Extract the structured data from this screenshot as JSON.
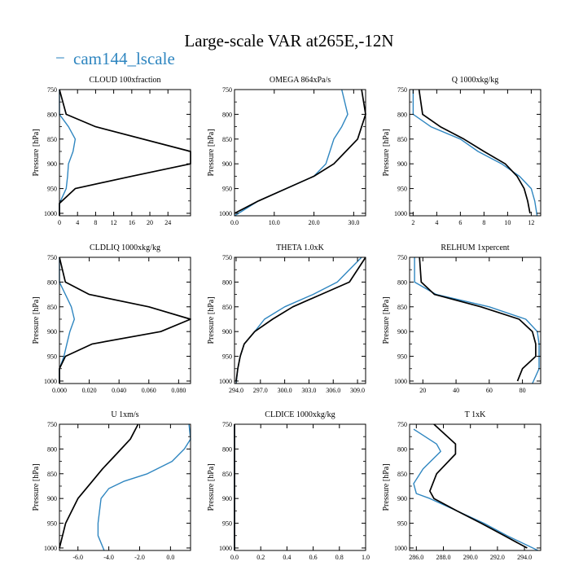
{
  "figure": {
    "title": "Large-scale VAR at265E,-12N",
    "legend": {
      "marker": "−",
      "label": "cam144_lscale",
      "placement": "top-left"
    },
    "colors": {
      "cam": "#2f86c0",
      "obs": "#000000"
    }
  },
  "chart_data": [
    {
      "type": "line",
      "title": "CLOUD  100xfraction",
      "ylabel": "Pressure [hPa]",
      "xlim": [
        0,
        29
      ],
      "ylim": [
        1005,
        750
      ],
      "xticks": [
        "0",
        "4",
        "8",
        "12",
        "16",
        "20",
        "24"
      ],
      "xtick_values": [
        0,
        4,
        8,
        12,
        16,
        20,
        24
      ],
      "yticks": [
        750,
        800,
        850,
        900,
        950,
        1000
      ],
      "series": [
        {
          "color": "#2f86c0",
          "points": [
            [
              0,
              750
            ],
            [
              0,
              800
            ],
            [
              2,
              825
            ],
            [
              3.5,
              850
            ],
            [
              3,
              875
            ],
            [
              2,
              900
            ],
            [
              1.8,
              925
            ],
            [
              1.5,
              950
            ],
            [
              0,
              980
            ],
            [
              0,
              1005
            ]
          ]
        },
        {
          "color": "#000000",
          "points": [
            [
              0,
              750
            ],
            [
              1.5,
              800
            ],
            [
              8,
              825
            ],
            [
              29,
              875
            ],
            [
              29,
              900
            ],
            [
              16,
              925
            ],
            [
              3.5,
              950
            ],
            [
              0,
              980
            ],
            [
              0,
              1005
            ]
          ]
        }
      ]
    },
    {
      "type": "line",
      "title": "OMEGA  864xPa/s",
      "ylabel": "Pressure [hPa]",
      "xlim": [
        0,
        33
      ],
      "ylim": [
        1005,
        750
      ],
      "xticks": [
        "0.0",
        "10.0",
        "20.0",
        "30.0"
      ],
      "xtick_values": [
        0,
        10,
        20,
        30
      ],
      "yticks": [
        750,
        800,
        850,
        900,
        950,
        1000
      ],
      "series": [
        {
          "color": "#2f86c0",
          "points": [
            [
              27,
              750
            ],
            [
              28.5,
              800
            ],
            [
              27,
              825
            ],
            [
              25,
              850
            ],
            [
              24,
              875
            ],
            [
              23,
              900
            ],
            [
              20,
              925
            ],
            [
              13,
              950
            ],
            [
              6,
              975
            ],
            [
              0,
              1005
            ]
          ]
        },
        {
          "color": "#000000",
          "points": [
            [
              32,
              750
            ],
            [
              33,
              800
            ],
            [
              31,
              850
            ],
            [
              28,
              875
            ],
            [
              25,
              900
            ],
            [
              20,
              925
            ],
            [
              13,
              950
            ],
            [
              6,
              975
            ],
            [
              0,
              1000
            ]
          ]
        }
      ]
    },
    {
      "type": "line",
      "title": "Q  1000xkg/kg",
      "ylabel": "Pressure [hPa]",
      "xlim": [
        1.7,
        12.8
      ],
      "ylim": [
        1005,
        750
      ],
      "xticks": [
        "2",
        "4",
        "6",
        "8",
        "10",
        "12"
      ],
      "xtick_values": [
        2,
        4,
        6,
        8,
        10,
        12
      ],
      "yticks": [
        750,
        800,
        850,
        900,
        950,
        1000
      ],
      "series": [
        {
          "color": "#2f86c0",
          "points": [
            [
              2,
              750
            ],
            [
              2,
              800
            ],
            [
              3.5,
              825
            ],
            [
              6,
              850
            ],
            [
              7.5,
              875
            ],
            [
              9.5,
              900
            ],
            [
              11,
              925
            ],
            [
              12,
              950
            ],
            [
              12.3,
              975
            ],
            [
              12.5,
              1005
            ]
          ]
        },
        {
          "color": "#000000",
          "points": [
            [
              2.5,
              750
            ],
            [
              2.8,
              800
            ],
            [
              4.3,
              825
            ],
            [
              6.3,
              850
            ],
            [
              8,
              875
            ],
            [
              9.8,
              900
            ],
            [
              10.8,
              925
            ],
            [
              11.4,
              950
            ],
            [
              11.7,
              975
            ],
            [
              11.9,
              1000
            ]
          ]
        }
      ]
    },
    {
      "type": "line",
      "title": "CLDLIQ  1000xkg/kg",
      "ylabel": "Pressure [hPa]",
      "xlim": [
        0,
        0.088
      ],
      "ylim": [
        1005,
        750
      ],
      "xticks": [
        "0.000",
        "0.020",
        "0.040",
        "0.060",
        "0.080"
      ],
      "xtick_values": [
        0,
        0.02,
        0.04,
        0.06,
        0.08
      ],
      "yticks": [
        750,
        800,
        850,
        900,
        950,
        1000
      ],
      "series": [
        {
          "color": "#2f86c0",
          "points": [
            [
              0,
              750
            ],
            [
              0,
              800
            ],
            [
              0.004,
              825
            ],
            [
              0.008,
              850
            ],
            [
              0.01,
              875
            ],
            [
              0.007,
              900
            ],
            [
              0.005,
              925
            ],
            [
              0.003,
              950
            ],
            [
              0,
              975
            ],
            [
              0,
              1005
            ]
          ]
        },
        {
          "color": "#000000",
          "points": [
            [
              0,
              750
            ],
            [
              0.004,
              800
            ],
            [
              0.02,
              825
            ],
            [
              0.06,
              850
            ],
            [
              0.088,
              875
            ],
            [
              0.068,
              900
            ],
            [
              0.022,
              925
            ],
            [
              0.004,
              950
            ],
            [
              0,
              975
            ],
            [
              0,
              1005
            ]
          ]
        }
      ]
    },
    {
      "type": "line",
      "title": "THETA  1.0xK",
      "ylabel": "Pressure [hPa]",
      "xlim": [
        293.8,
        310
      ],
      "ylim": [
        1005,
        750
      ],
      "xticks": [
        "294.0",
        "297.0",
        "300.0",
        "303.0",
        "306.0",
        "309.0"
      ],
      "xtick_values": [
        294,
        297,
        300,
        303,
        306,
        309
      ],
      "yticks": [
        750,
        800,
        850,
        900,
        950,
        1000
      ],
      "series": [
        {
          "color": "#2f86c0",
          "points": [
            [
              309.5,
              750
            ],
            [
              306.5,
              800
            ],
            [
              303.5,
              825
            ],
            [
              300,
              850
            ],
            [
              297.5,
              875
            ],
            [
              296.3,
              900
            ],
            [
              295,
              925
            ],
            [
              294.5,
              950
            ],
            [
              294.2,
              975
            ],
            [
              294,
              1005
            ]
          ]
        },
        {
          "color": "#000000",
          "points": [
            [
              310,
              750
            ],
            [
              308,
              800
            ],
            [
              304.5,
              825
            ],
            [
              301,
              850
            ],
            [
              298.5,
              875
            ],
            [
              296.3,
              900
            ],
            [
              295,
              925
            ],
            [
              294.5,
              950
            ],
            [
              294.2,
              975
            ],
            [
              294,
              1000
            ]
          ]
        }
      ]
    },
    {
      "type": "line",
      "title": "RELHUM  1xpercent",
      "ylabel": "Pressure [hPa]",
      "xlim": [
        12,
        91
      ],
      "ylim": [
        1005,
        750
      ],
      "xticks": [
        "20",
        "40",
        "60",
        "80"
      ],
      "xtick_values": [
        20,
        40,
        60,
        80
      ],
      "yticks": [
        750,
        800,
        850,
        900,
        950,
        1000
      ],
      "series": [
        {
          "color": "#2f86c0",
          "points": [
            [
              15,
              750
            ],
            [
              15,
              800
            ],
            [
              28,
              825
            ],
            [
              60,
              850
            ],
            [
              82,
              875
            ],
            [
              89,
              900
            ],
            [
              90,
              925
            ],
            [
              90,
              950
            ],
            [
              90,
              975
            ],
            [
              86,
              1005
            ]
          ]
        },
        {
          "color": "#000000",
          "points": [
            [
              18,
              750
            ],
            [
              19,
              800
            ],
            [
              27,
              825
            ],
            [
              55,
              850
            ],
            [
              78,
              875
            ],
            [
              86,
              900
            ],
            [
              88,
              925
            ],
            [
              88,
              950
            ],
            [
              80,
              975
            ],
            [
              77,
              1000
            ]
          ]
        }
      ]
    },
    {
      "type": "line",
      "title": "U  1xm/s",
      "ylabel": "Pressure [hPa]",
      "xlim": [
        -7.2,
        1.3
      ],
      "ylim": [
        1005,
        750
      ],
      "xticks": [
        "-6.0",
        "-4.0",
        "-2.0",
        "0.0"
      ],
      "xtick_values": [
        -6,
        -4,
        -2,
        0
      ],
      "yticks": [
        750,
        800,
        850,
        900,
        950,
        1000
      ],
      "series": [
        {
          "color": "#2f86c0",
          "points": [
            [
              1.2,
              750
            ],
            [
              1.3,
              780
            ],
            [
              0.9,
              800
            ],
            [
              0.1,
              825
            ],
            [
              -1.5,
              850
            ],
            [
              -3,
              865
            ],
            [
              -4,
              880
            ],
            [
              -4.5,
              900
            ],
            [
              -4.7,
              950
            ],
            [
              -4.7,
              975
            ],
            [
              -4.3,
              1005
            ]
          ]
        },
        {
          "color": "#000000",
          "points": [
            [
              -2.1,
              750
            ],
            [
              -2.6,
              780
            ],
            [
              -3.5,
              810
            ],
            [
              -4.4,
              840
            ],
            [
              -5.2,
              870
            ],
            [
              -6,
              900
            ],
            [
              -6.8,
              950
            ],
            [
              -7.2,
              1000
            ]
          ]
        }
      ]
    },
    {
      "type": "line",
      "title": "CLDICE  1000xkg/kg",
      "ylabel": "Pressure [hPa]",
      "xlim": [
        0,
        1
      ],
      "ylim": [
        1005,
        750
      ],
      "xticks": [
        "0.0",
        "0.2",
        "0.4",
        "0.6",
        "0.8",
        "1.0"
      ],
      "xtick_values": [
        0,
        0.2,
        0.4,
        0.6,
        0.8,
        1
      ],
      "yticks": [
        750,
        800,
        850,
        900,
        950,
        1000
      ],
      "series": [
        {
          "color": "#2f86c0",
          "points": [
            [
              0,
              750
            ],
            [
              0,
              1005
            ]
          ]
        },
        {
          "color": "#000000",
          "points": [
            [
              0,
              750
            ],
            [
              0,
              1005
            ]
          ]
        }
      ]
    },
    {
      "type": "line",
      "title": "T  1xK",
      "ylabel": "Pressure [hPa]",
      "xlim": [
        285.5,
        295.2
      ],
      "ylim": [
        1005,
        750
      ],
      "xticks": [
        "286.0",
        "288.0",
        "290.0",
        "292.0",
        "294.0"
      ],
      "xtick_values": [
        286,
        288,
        290,
        292,
        294
      ],
      "yticks": [
        750,
        800,
        850,
        900,
        950,
        1000
      ],
      "series": [
        {
          "color": "#2f86c0",
          "points": [
            [
              285.8,
              760
            ],
            [
              287.5,
              790
            ],
            [
              287.8,
              805
            ],
            [
              286.5,
              840
            ],
            [
              285.8,
              870
            ],
            [
              286,
              890
            ],
            [
              287,
              900
            ],
            [
              289,
              925
            ],
            [
              291,
              950
            ],
            [
              292.7,
              975
            ],
            [
              295,
              1005
            ]
          ]
        },
        {
          "color": "#000000",
          "points": [
            [
              287.3,
              750
            ],
            [
              288.9,
              790
            ],
            [
              288.9,
              810
            ],
            [
              287.5,
              850
            ],
            [
              287,
              885
            ],
            [
              287.3,
              900
            ],
            [
              289,
              925
            ],
            [
              290.8,
              950
            ],
            [
              292.5,
              975
            ],
            [
              294.2,
              1000
            ]
          ]
        }
      ]
    }
  ]
}
